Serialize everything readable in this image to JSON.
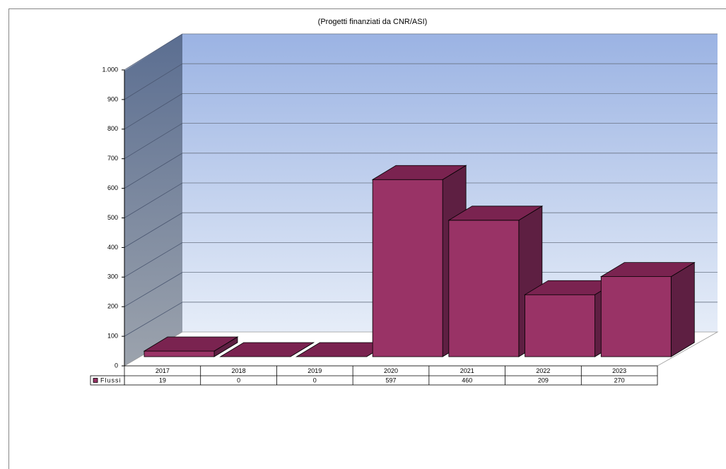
{
  "chart_data": {
    "type": "bar3d",
    "title": "(Progetti finanziati da CNR/ASI)",
    "categories": [
      "2017",
      "2018",
      "2019",
      "2020",
      "2021",
      "2022",
      "2023"
    ],
    "series": [
      {
        "name": "Flussi",
        "color": "#993366",
        "values": [
          19,
          0,
          0,
          597,
          460,
          209,
          270
        ]
      }
    ],
    "ylim": [
      0,
      1000
    ],
    "yticks": [
      0,
      100,
      200,
      300,
      400,
      500,
      600,
      700,
      800,
      900,
      {
        "value": 1000,
        "label": "1.000"
      }
    ],
    "grid": true
  }
}
